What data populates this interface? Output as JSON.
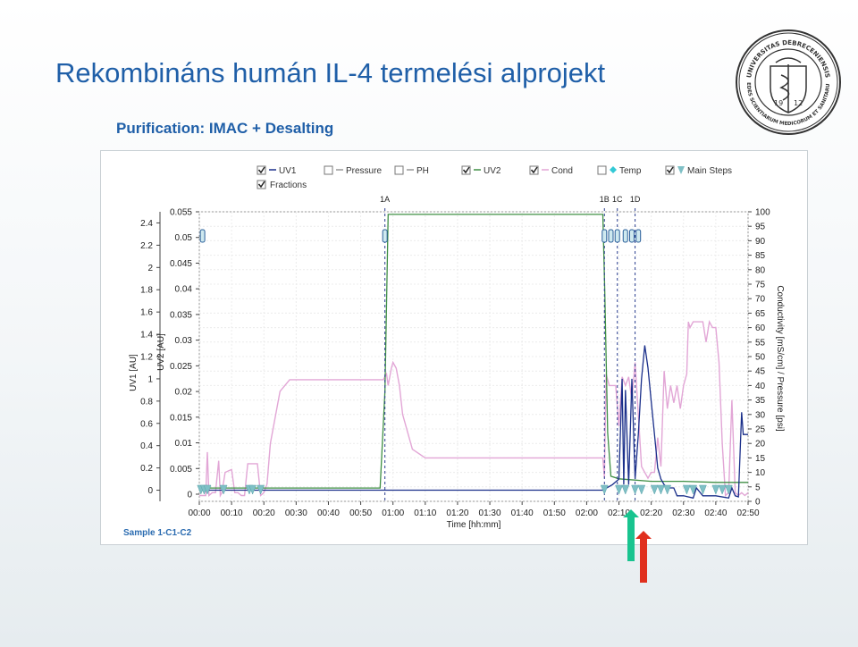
{
  "slide": {
    "title": "Rekombináns humán IL-4 termelési alprojekt",
    "subtitle": "Purification: IMAC + Desalting",
    "seal_text_top": "UNIVERSITAS DEBRECENIENSIS",
    "seal_text_bottom": "SEDES SCIENTIARUM MEDICORUM ET SANITARUM",
    "seal_year_left": "19",
    "seal_year_right": "12"
  },
  "colors": {
    "title": "#1f5fa8",
    "uv1": "#1a2f8a",
    "uv2": "#3f8f44",
    "cond": "#e2a6d6",
    "arrow_green": "#19c48f",
    "arrow_red": "#e0301e",
    "marker": "#7fc0c6"
  },
  "chart_data": {
    "type": "line",
    "sample_label": "Sample 1-C1-C2",
    "legend": [
      {
        "label": "UV1",
        "checked": true
      },
      {
        "label": "Pressure",
        "checked": false
      },
      {
        "label": "PH",
        "checked": false
      },
      {
        "label": "UV2",
        "checked": true
      },
      {
        "label": "Cond",
        "checked": true
      },
      {
        "label": "Temp",
        "checked": false
      },
      {
        "label": "Main Steps",
        "checked": true
      },
      {
        "label": "Fractions",
        "checked": true
      }
    ],
    "xlabel": "Time [hh:mm]",
    "xlim": [
      0,
      170
    ],
    "x_ticks": [
      0,
      10,
      20,
      30,
      40,
      50,
      60,
      70,
      80,
      90,
      100,
      110,
      120,
      130,
      140,
      150,
      160,
      170
    ],
    "x_tick_labels": [
      "00:00",
      "00:10",
      "00:20",
      "00:30",
      "00:40",
      "00:50",
      "01:00",
      "01:10",
      "01:20",
      "01:30",
      "01:40",
      "01:50",
      "02:00",
      "02:10",
      "02:20",
      "02:30",
      "02:40",
      "02:50"
    ],
    "y1_label": "UV1 [AU]",
    "y1_lim": [
      -0.1,
      2.5
    ],
    "y1_ticks": [
      "0",
      "0.2",
      "0.4",
      "0.6",
      "0.8",
      "1",
      "1.2",
      "1.4",
      "1.6",
      "1.8",
      "2",
      "2.2",
      "2.4"
    ],
    "y2_label": "UV2 [AU]",
    "y2_lim": [
      0,
      0.055
    ],
    "y2_ticks": [
      "0",
      "0.005",
      "0.01",
      "0.015",
      "0.02",
      "0.025",
      "0.03",
      "0.035",
      "0.04",
      "0.045",
      "0.05",
      "0.055"
    ],
    "y3_label": "Conductivity [mS/cm] / Pressure [psi]",
    "y3_lim": [
      0,
      100
    ],
    "y3_ticks": [
      "0",
      "5",
      "10",
      "15",
      "20",
      "25",
      "30",
      "35",
      "40",
      "45",
      "50",
      "55",
      "60",
      "65",
      "70",
      "75",
      "80",
      "85",
      "90",
      "95",
      "100"
    ],
    "grid": true,
    "fraction_marks": [
      {
        "label": "1A",
        "x": 57.5
      },
      {
        "label": "1B",
        "x": 125.5
      },
      {
        "label": "1C",
        "x": 129.5
      },
      {
        "label": "1D",
        "x": 135
      }
    ],
    "series": [
      {
        "name": "UV1",
        "axis": "y1",
        "x": [
          0,
          10,
          50,
          125,
          128,
          130,
          131,
          131.5,
          132,
          133,
          134,
          135,
          136,
          137,
          138,
          139,
          140,
          141,
          142,
          143,
          144,
          145,
          146,
          147,
          148,
          150,
          153,
          154,
          156,
          160,
          164,
          165,
          166,
          167,
          168,
          168.5,
          170
        ],
        "y": [
          0,
          0,
          0,
          0,
          0.05,
          0.1,
          1.0,
          0.05,
          0.9,
          0.05,
          1.0,
          0.1,
          0.5,
          1.0,
          1.3,
          1.1,
          0.8,
          0.5,
          0.2,
          0.1,
          0.05,
          0.02,
          0.02,
          0.02,
          -0.05,
          -0.05,
          -0.07,
          0.02,
          -0.05,
          -0.05,
          -0.07,
          0.02,
          -0.05,
          -0.06,
          0.7,
          0.5,
          0.5
        ]
      },
      {
        "name": "UV2",
        "axis": "y2",
        "x": [
          0,
          10,
          56,
          57.5,
          58.5,
          60,
          100,
          125,
          125.6,
          126.5,
          127.5,
          130,
          140,
          150,
          160,
          170
        ],
        "y": [
          0.0012,
          0.0012,
          0.0012,
          0.02,
          0.0545,
          0.0545,
          0.0545,
          0.0545,
          0.04,
          0.012,
          0.0035,
          0.003,
          0.0025,
          0.0025,
          0.0023,
          0.0023
        ]
      },
      {
        "name": "Cond",
        "axis": "y3",
        "x": [
          0,
          2,
          2.5,
          3,
          4,
          5,
          6,
          6.5,
          7,
          8,
          10,
          11,
          12,
          13,
          14,
          15,
          16,
          18,
          19,
          20,
          21,
          22,
          25,
          28,
          30,
          32,
          40,
          55,
          57,
          58,
          58.5,
          59.5,
          60,
          61,
          62,
          63,
          66,
          70,
          80,
          120,
          125,
          125.5,
          126,
          127,
          128,
          129,
          130,
          131,
          132,
          133,
          134,
          135,
          136,
          137,
          138,
          139,
          140,
          141,
          142,
          143,
          144,
          145,
          146,
          147,
          148,
          149,
          150,
          151,
          151.5,
          152,
          153,
          154,
          155,
          156,
          157,
          158,
          159,
          160,
          161,
          162,
          163,
          164,
          165,
          166,
          167,
          168,
          169,
          170
        ],
        "y": [
          2,
          2,
          17,
          2,
          3,
          3,
          14,
          2,
          3,
          10,
          11,
          3,
          3,
          2,
          2,
          13,
          13,
          13,
          2,
          3,
          6,
          20,
          38,
          42,
          42,
          42,
          42,
          42,
          42,
          44,
          40,
          46,
          48,
          46,
          40,
          30,
          18,
          15,
          15,
          15,
          15,
          8,
          44,
          40,
          40,
          40,
          26,
          43,
          40,
          43,
          35,
          48,
          30,
          12,
          10,
          8,
          10,
          10,
          22,
          12,
          45,
          32,
          40,
          34,
          40,
          32,
          40,
          44,
          62,
          60,
          62,
          62,
          62,
          62,
          55,
          62,
          60,
          60,
          48,
          20,
          2,
          3,
          35,
          3,
          2,
          3,
          2,
          3
        ]
      }
    ],
    "main_step_markers": [
      0.5,
      1.5,
      2.5,
      7.5,
      15.5,
      16.5,
      19,
      125.5,
      130,
      132,
      135,
      137,
      141,
      143,
      145,
      151,
      153,
      156,
      160,
      162,
      164
    ]
  }
}
